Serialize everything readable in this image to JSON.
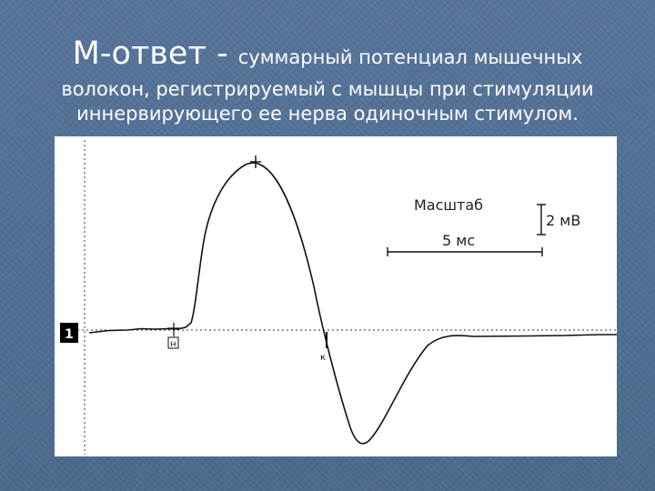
{
  "slide": {
    "title_main": "М-ответ - ",
    "title_rest": "суммарный потенциал мышечных",
    "title_line2": "волокон, регистрируемый с мышцы при стимуляции",
    "title_line3": "иннервирующего ее нерва одиночным стимулом."
  },
  "figure": {
    "channel_label": "1",
    "scale_title": "Масштаб",
    "amplitude_scale": "2 мВ",
    "time_scale": "5 мс",
    "onset_marker": "н",
    "end_marker": "к",
    "colors": {
      "trace": "#111111",
      "background": "#ffffff",
      "slide": "#4f6c8f"
    }
  }
}
